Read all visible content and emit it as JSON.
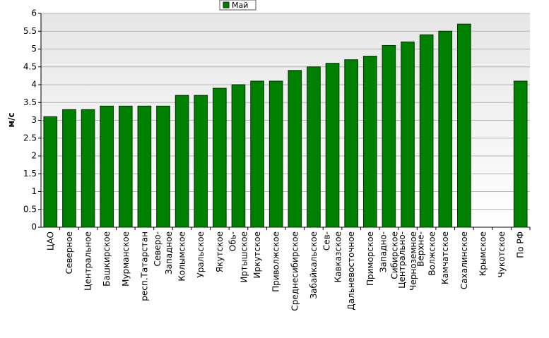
{
  "chart_data": {
    "type": "bar",
    "y_label": "м/с",
    "categories": [
      "ЦАО",
      "Северное",
      "Центральное",
      "Башкирское",
      "Мурманское",
      "респ.Татарстан",
      "Северо-Западное",
      "Колымское",
      "Уральское",
      "Якутское",
      "Обь-Иртышское",
      "Иркутское",
      "Приволжское",
      "Среднесибирское",
      "Забайкальское",
      "Сев-Кавказское",
      "Дальневосточное",
      "Приморское",
      "Западно-Сибирское",
      "Центрально-Черноземное",
      "Верхне-Волжское",
      "Камчатское",
      "Сахалинское",
      "Крымское",
      "Чукотское",
      "По РФ"
    ],
    "series": [
      {
        "name": "Май",
        "color": "#008000",
        "values": [
          3.1,
          3.3,
          3.3,
          3.4,
          3.4,
          3.4,
          3.4,
          3.7,
          3.7,
          3.9,
          4.0,
          4.1,
          4.1,
          4.4,
          4.5,
          4.6,
          4.7,
          4.8,
          5.1,
          5.2,
          5.4,
          5.5,
          5.7,
          null,
          null,
          4.1
        ]
      }
    ],
    "ylim": [
      0,
      6
    ],
    "yticks": [
      0,
      0.5,
      1,
      1.5,
      2,
      2.5,
      3,
      3.5,
      4,
      4.5,
      5,
      5.5,
      6
    ],
    "grid": true,
    "legend": "top"
  }
}
